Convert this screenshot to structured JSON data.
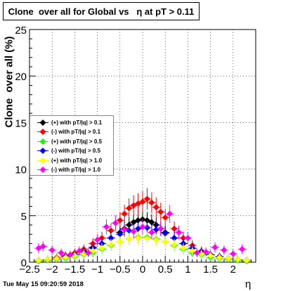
{
  "title": "Clone  over all for Global vs   η at pT > 0.11",
  "footer": "Tue May 15 09:20:59 2018",
  "chart_data": {
    "type": "scatter",
    "xlabel": "η",
    "ylabel": "Clone  over all (%)",
    "xlim": [
      -2.5,
      2.5
    ],
    "ylim": [
      0,
      25
    ],
    "xticks": [
      "−2.5",
      "−2",
      "−1.5",
      "−1",
      "−0.5",
      "0",
      "0.5",
      "1",
      "1.5",
      "2"
    ],
    "yticks": [
      "0",
      "5",
      "10",
      "15",
      "20",
      "25"
    ],
    "grid": true,
    "legend_position": "upper-left",
    "series": [
      {
        "name": "(+) with pT/|q| > 0.1",
        "color": "#000000",
        "x": [
          -2.3,
          -2.1,
          -1.9,
          -1.7,
          -1.5,
          -1.3,
          -1.1,
          -0.9,
          -0.7,
          -0.5,
          -0.4,
          -0.3,
          -0.2,
          -0.1,
          0.0,
          0.1,
          0.2,
          0.3,
          0.4,
          0.5,
          0.7,
          0.9,
          1.1,
          1.3,
          1.5,
          1.7,
          1.9,
          2.1,
          2.3
        ],
        "y": [
          0.2,
          0.3,
          0.4,
          0.6,
          0.8,
          1.2,
          1.6,
          2.0,
          2.6,
          3.2,
          3.6,
          4.0,
          4.3,
          4.5,
          4.6,
          4.5,
          4.3,
          4.0,
          3.6,
          3.2,
          2.6,
          2.0,
          1.5,
          1.1,
          0.8,
          0.6,
          0.4,
          0.3,
          0.2
        ]
      },
      {
        "name": "(-) with pT/|q| > 0.1",
        "color": "#ff0000",
        "x": [
          -2.3,
          -2.1,
          -1.9,
          -1.7,
          -1.5,
          -1.3,
          -1.1,
          -0.9,
          -0.7,
          -0.5,
          -0.4,
          -0.3,
          -0.2,
          -0.1,
          0.0,
          0.1,
          0.2,
          0.3,
          0.4,
          0.5,
          0.7,
          0.9,
          1.1,
          1.3,
          1.5,
          1.7,
          1.9,
          2.1,
          2.3
        ],
        "y": [
          0.2,
          0.3,
          0.5,
          0.7,
          1.0,
          1.4,
          2.0,
          2.6,
          3.4,
          4.5,
          5.2,
          5.8,
          6.1,
          6.3,
          6.5,
          6.8,
          6.4,
          5.9,
          5.4,
          4.8,
          3.6,
          2.6,
          1.8,
          1.2,
          0.8,
          0.6,
          0.4,
          0.3,
          0.2
        ]
      },
      {
        "name": "(+) with pT/|q| > 0.5",
        "color": "#00ff00",
        "x": [
          -2.3,
          -2.1,
          -1.9,
          -1.7,
          -1.5,
          -1.3,
          -1.1,
          -0.9,
          -0.7,
          -0.5,
          -0.3,
          -0.1,
          0.1,
          0.3,
          0.5,
          0.7,
          0.9,
          1.1,
          1.3,
          1.5,
          1.7,
          1.9,
          2.1,
          2.3
        ],
        "y": [
          0.1,
          0.2,
          0.3,
          0.4,
          0.6,
          0.8,
          1.0,
          1.4,
          1.8,
          2.2,
          2.5,
          2.7,
          2.7,
          2.5,
          2.2,
          1.8,
          1.4,
          1.0,
          0.8,
          0.5,
          0.4,
          0.3,
          0.2,
          0.1
        ]
      },
      {
        "name": "(-) with pT/|q| > 0.5",
        "color": "#0000ff",
        "x": [
          -2.3,
          -2.1,
          -1.9,
          -1.7,
          -1.5,
          -1.3,
          -1.1,
          -0.9,
          -0.7,
          -0.5,
          -0.3,
          -0.1,
          0.1,
          0.3,
          0.5,
          0.7,
          0.9,
          1.1,
          1.3,
          1.5,
          1.7,
          1.9,
          2.1,
          2.3
        ],
        "y": [
          0.2,
          0.3,
          0.4,
          0.6,
          0.8,
          1.1,
          1.5,
          2.0,
          2.6,
          3.0,
          3.4,
          3.6,
          3.7,
          3.5,
          3.1,
          2.6,
          2.0,
          1.5,
          1.1,
          0.8,
          0.6,
          0.4,
          0.3,
          0.2
        ]
      },
      {
        "name": "(+) with pT/|q| > 1.0",
        "color": "#ffff00",
        "x": [
          -2.3,
          -2.1,
          -1.9,
          -1.7,
          -1.5,
          -1.3,
          -1.1,
          -0.9,
          -0.7,
          -0.5,
          -0.3,
          -0.1,
          0.1,
          0.3,
          0.5,
          0.7,
          0.9,
          1.1,
          1.3,
          1.5,
          1.7,
          1.9,
          2.1,
          2.3
        ],
        "y": [
          0.2,
          0.3,
          0.4,
          0.5,
          0.7,
          0.9,
          1.2,
          1.5,
          1.9,
          2.2,
          2.5,
          2.6,
          2.6,
          2.4,
          2.2,
          1.9,
          1.5,
          1.2,
          0.9,
          0.7,
          0.5,
          0.4,
          0.3,
          0.2
        ]
      },
      {
        "name": "(-) with pT/|q| > 1.0",
        "color": "#ff00ff",
        "x": [
          -2.3,
          -2.2,
          -2.0,
          -1.8,
          -1.6,
          -1.4,
          -1.2,
          -1.0,
          -0.8,
          -0.6,
          -0.4,
          -0.2,
          0.0,
          0.2,
          0.4,
          0.6,
          0.8,
          1.0,
          1.2,
          1.4,
          1.6,
          1.8,
          2.0,
          2.2
        ],
        "y": [
          1.5,
          1.7,
          1.3,
          1.0,
          0.8,
          1.2,
          1.0,
          2.4,
          3.8,
          4.2,
          3.5,
          3.3,
          3.8,
          3.2,
          3.6,
          5.2,
          3.2,
          2.6,
          1.0,
          1.1,
          1.6,
          1.3,
          0.9,
          1.4
        ]
      }
    ]
  }
}
